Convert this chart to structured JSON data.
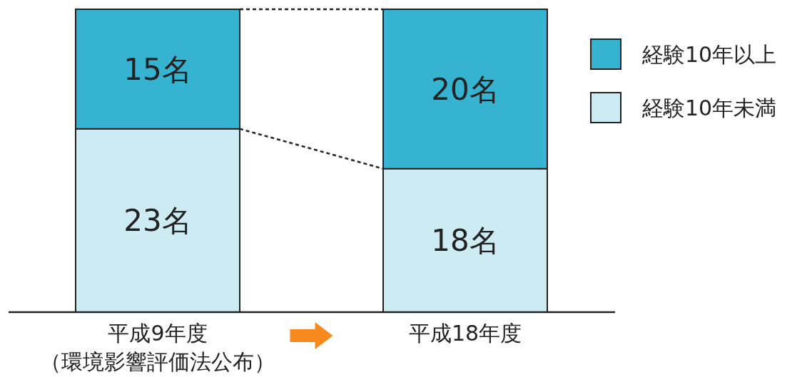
{
  "chart_data": {
    "type": "bar",
    "stacked": true,
    "legend": "right",
    "categories": [
      "平成9年度（環境影響評価法公布）",
      "平成18年度"
    ],
    "series": [
      {
        "name": "経験10年未満",
        "color": "#cdebf2",
        "values": [
          23,
          18
        ],
        "value_labels": [
          "23名",
          "18名"
        ]
      },
      {
        "name": "経験10年以上",
        "color": "#35b3d1",
        "values": [
          15,
          20
        ],
        "value_labels": [
          "15名",
          "20名"
        ]
      }
    ]
  }
}
